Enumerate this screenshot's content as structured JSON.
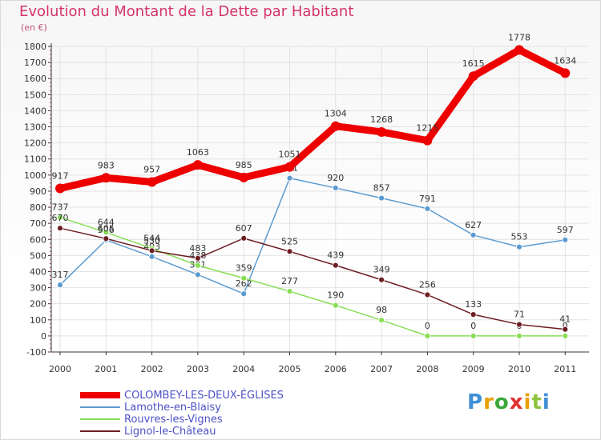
{
  "header": {
    "title": "Evolution du Montant de la Dette par Habitant",
    "unit": "(en €)"
  },
  "logo": {
    "text": "Proxiti",
    "letter_colors": [
      "#3f8fd6",
      "#e8a000",
      "#3aa83a",
      "#e03030",
      "#e8a000",
      "#8fc33a",
      "#3f8fd6"
    ]
  },
  "chart_data": {
    "type": "line",
    "title": "Evolution du Montant de la Dette par Habitant",
    "subtitle": "(en €)",
    "x": [
      "2000",
      "2001",
      "2002",
      "2003",
      "2004",
      "2005",
      "2006",
      "2007",
      "2008",
      "2009",
      "2010",
      "2011"
    ],
    "ylim": [
      -100,
      1800
    ],
    "yticks": [
      -100,
      0,
      100,
      200,
      300,
      400,
      500,
      600,
      700,
      800,
      900,
      1000,
      1100,
      1200,
      1300,
      1400,
      1500,
      1600,
      1700,
      1800
    ],
    "grid": true,
    "legend_position": "bottom-left",
    "series": [
      {
        "name": "COLOMBEY-LES-DEUX-ÉGLISES",
        "color": "#ee0000",
        "values": [
          917,
          983,
          957,
          1063,
          985,
          1051,
          1304,
          1268,
          1215,
          1615,
          1778,
          1634
        ]
      },
      {
        "name": "Lamothe-en-Blaisy",
        "color": "#5b9bd0",
        "values": [
          317,
          596,
          493,
          381,
          262,
          981,
          920,
          857,
          791,
          627,
          553,
          597
        ]
      },
      {
        "name": "Rouvres-les-Vignes",
        "color": "#88dd55",
        "values": [
          737,
          644,
          544,
          438,
          359,
          277,
          190,
          98,
          0,
          0,
          0,
          0
        ]
      },
      {
        "name": "Lignol-le-Château",
        "color": "#6d1e23",
        "values": [
          670,
          605,
          530,
          483,
          607,
          525,
          439,
          349,
          256,
          133,
          71,
          41
        ]
      }
    ]
  }
}
